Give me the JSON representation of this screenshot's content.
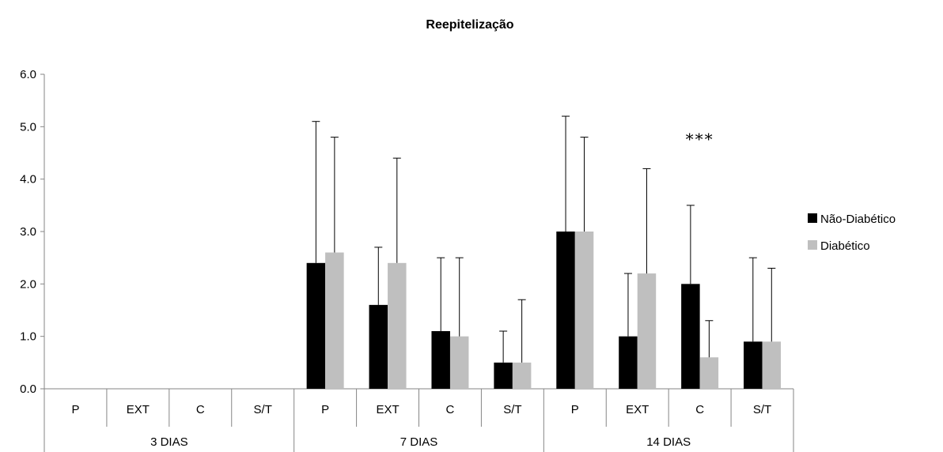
{
  "chart_data": {
    "type": "bar",
    "title": "Reepitelização",
    "xlabel": "",
    "ylabel": "",
    "ylim": [
      0,
      6
    ],
    "yticks": [
      "0.0",
      "1.0",
      "2.0",
      "3.0",
      "4.0",
      "5.0",
      "6.0"
    ],
    "groups": [
      {
        "label": "3 DIAS",
        "categories": [
          "P",
          "EXT",
          "C",
          "S/T"
        ]
      },
      {
        "label": "7 DIAS",
        "categories": [
          "P",
          "EXT",
          "C",
          "S/T"
        ]
      },
      {
        "label": "14 DIAS",
        "categories": [
          "P",
          "EXT",
          "C",
          "S/T"
        ]
      }
    ],
    "series": [
      {
        "name": "Não-Diabético",
        "color": "#000000",
        "values": [
          0,
          0,
          0,
          0,
          2.4,
          1.6,
          1.1,
          0.5,
          3.0,
          1.0,
          2.0,
          0.9
        ],
        "error_upper": [
          0,
          0,
          0,
          0,
          5.1,
          2.7,
          2.5,
          1.1,
          5.2,
          2.2,
          3.5,
          2.5
        ]
      },
      {
        "name": "Diabético",
        "color": "#bfbfbf",
        "values": [
          0,
          0,
          0,
          0,
          2.6,
          2.4,
          1.0,
          0.5,
          3.0,
          2.2,
          0.6,
          0.9
        ],
        "error_upper": [
          0,
          0,
          0,
          0,
          4.8,
          4.4,
          2.5,
          1.7,
          4.8,
          4.2,
          1.3,
          2.3
        ]
      }
    ],
    "annotations": [
      {
        "text": "***",
        "category_index": 10,
        "y": 4.75
      }
    ],
    "legend_position": "right",
    "grid": false
  }
}
